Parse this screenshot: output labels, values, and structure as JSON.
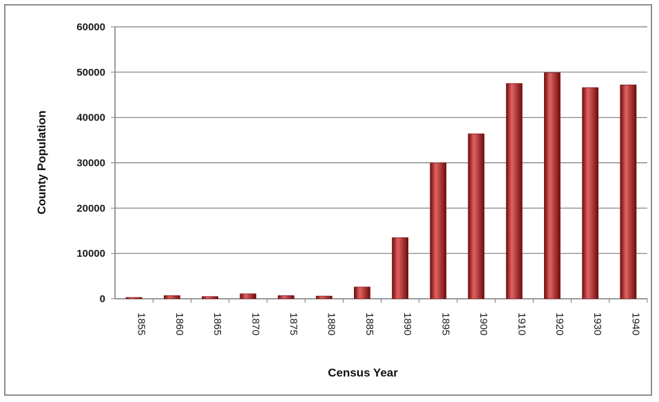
{
  "chart_data": {
    "type": "bar",
    "title": "",
    "xlabel": "Census Year",
    "ylabel": "County Population",
    "categories": [
      "1855",
      "1860",
      "1865",
      "1870",
      "1875",
      "1880",
      "1885",
      "1890",
      "1895",
      "1900",
      "1910",
      "1920",
      "1930",
      "1940"
    ],
    "values": [
      300,
      700,
      500,
      1100,
      700,
      600,
      2600,
      13500,
      30000,
      36400,
      47500,
      49900,
      46600,
      47200
    ],
    "ylim": [
      0,
      60000
    ],
    "yticks": [
      0,
      10000,
      20000,
      30000,
      40000,
      50000,
      60000
    ],
    "grid": true,
    "legend": "none",
    "bar_color": "#b31b1b",
    "bar_highlight": "#e26262",
    "bar_shadow": "#6e0c0c"
  }
}
